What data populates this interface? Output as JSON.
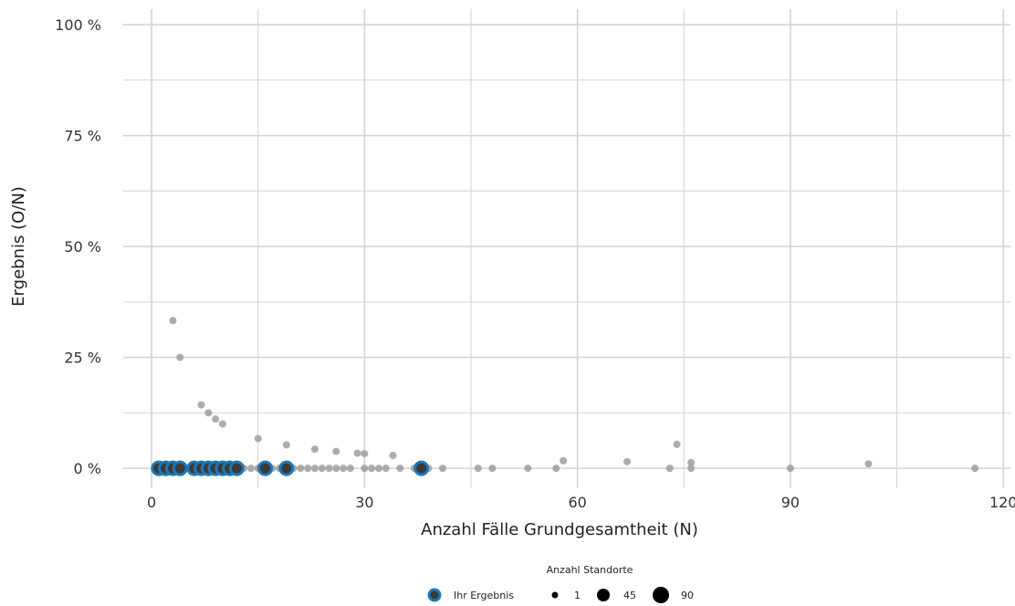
{
  "chart_data": {
    "type": "scatter",
    "xlabel": "Anzahl Fälle Grundgesamtheit (N)",
    "ylabel": "Ergebnis (O/N)",
    "xlim": [
      -4,
      121
    ],
    "ylim": [
      -0.045,
      1.035
    ],
    "x_ticks": [
      0,
      30,
      60,
      90,
      120
    ],
    "x_tick_labels": [
      "0",
      "30",
      "60",
      "90",
      "120"
    ],
    "y_ticks": [
      0,
      0.25,
      0.5,
      0.75,
      1.0
    ],
    "y_tick_labels": [
      "0 %",
      "25 %",
      "50 %",
      "75 %",
      "100 %"
    ],
    "grid": true,
    "legend_position": "bottom",
    "colors": {
      "others": "#9e9e9e",
      "highlight_fill": "#3a3a3a",
      "highlight_stroke": "#1f77b4",
      "grid": "#d4d4d4",
      "legend_dot": "#000000"
    },
    "series": [
      {
        "points": [
          {
            "x": 3,
            "y": 0.333
          },
          {
            "x": 4,
            "y": 0.25
          },
          {
            "x": 7,
            "y": 0.143
          },
          {
            "x": 8,
            "y": 0.125
          },
          {
            "x": 9,
            "y": 0.111
          },
          {
            "x": 10,
            "y": 0.1
          },
          {
            "x": 15,
            "y": 0.067
          },
          {
            "x": 19,
            "y": 0.053
          },
          {
            "x": 23,
            "y": 0.043
          },
          {
            "x": 26,
            "y": 0.038
          },
          {
            "x": 29,
            "y": 0.034
          },
          {
            "x": 30,
            "y": 0.033
          },
          {
            "x": 34,
            "y": 0.029
          },
          {
            "x": 58,
            "y": 0.017
          },
          {
            "x": 67,
            "y": 0.015
          },
          {
            "x": 74,
            "y": 0.054
          },
          {
            "x": 76,
            "y": 0.013
          },
          {
            "x": 101,
            "y": 0.01
          },
          {
            "x": 13,
            "y": 0
          },
          {
            "x": 14,
            "y": 0
          },
          {
            "x": 15,
            "y": 0
          },
          {
            "x": 17,
            "y": 0
          },
          {
            "x": 18,
            "y": 0
          },
          {
            "x": 20,
            "y": 0
          },
          {
            "x": 21,
            "y": 0
          },
          {
            "x": 22,
            "y": 0
          },
          {
            "x": 23,
            "y": 0
          },
          {
            "x": 24,
            "y": 0
          },
          {
            "x": 25,
            "y": 0
          },
          {
            "x": 26,
            "y": 0
          },
          {
            "x": 27,
            "y": 0
          },
          {
            "x": 28,
            "y": 0
          },
          {
            "x": 30,
            "y": 0
          },
          {
            "x": 31,
            "y": 0
          },
          {
            "x": 32,
            "y": 0
          },
          {
            "x": 33,
            "y": 0
          },
          {
            "x": 35,
            "y": 0
          },
          {
            "x": 37,
            "y": 0
          },
          {
            "x": 39,
            "y": 0
          },
          {
            "x": 41,
            "y": 0
          },
          {
            "x": 46,
            "y": 0
          },
          {
            "x": 48,
            "y": 0
          },
          {
            "x": 53,
            "y": 0
          },
          {
            "x": 57,
            "y": 0
          },
          {
            "x": 73,
            "y": 0
          },
          {
            "x": 76,
            "y": 0
          },
          {
            "x": 90,
            "y": 0
          },
          {
            "x": 116,
            "y": 0
          }
        ]
      },
      {
        "name": "Ihr Ergebnis",
        "points": [
          {
            "x": 1,
            "y": 0
          },
          {
            "x": 2,
            "y": 0
          },
          {
            "x": 3,
            "y": 0
          },
          {
            "x": 4,
            "y": 0
          },
          {
            "x": 6,
            "y": 0
          },
          {
            "x": 7,
            "y": 0
          },
          {
            "x": 8,
            "y": 0
          },
          {
            "x": 9,
            "y": 0
          },
          {
            "x": 10,
            "y": 0
          },
          {
            "x": 11,
            "y": 0
          },
          {
            "x": 12,
            "y": 0
          },
          {
            "x": 16,
            "y": 0
          },
          {
            "x": 19,
            "y": 0
          },
          {
            "x": 38,
            "y": 0
          }
        ]
      }
    ],
    "legend": {
      "title": "Anzahl Standorte",
      "own_label": "Ihr Ergebnis",
      "size_labels": [
        "1",
        "45",
        "90"
      ]
    }
  }
}
